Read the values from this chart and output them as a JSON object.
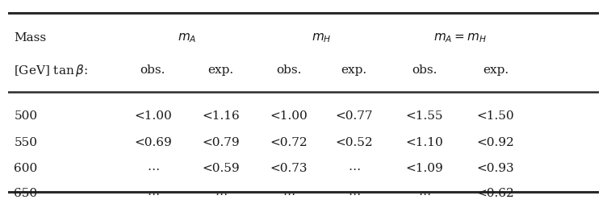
{
  "rows": [
    [
      "500",
      "<1.00",
      "<1.16",
      "<1.00",
      "<0.77",
      "<1.55",
      "<1.50"
    ],
    [
      "550",
      "<0.69",
      "<0.79",
      "<0.72",
      "<0.52",
      "<1.10",
      "<0.92"
    ],
    [
      "600",
      "...",
      "<0.59",
      "<0.73",
      "...",
      "<1.09",
      "<0.93"
    ],
    [
      "650",
      "...",
      "...",
      "...",
      "...",
      "...",
      "<0.62"
    ]
  ],
  "bg_color": "#ffffff",
  "line_color": "#2a2a2a",
  "text_color": "#1a1a1a",
  "fontsize": 11.0
}
